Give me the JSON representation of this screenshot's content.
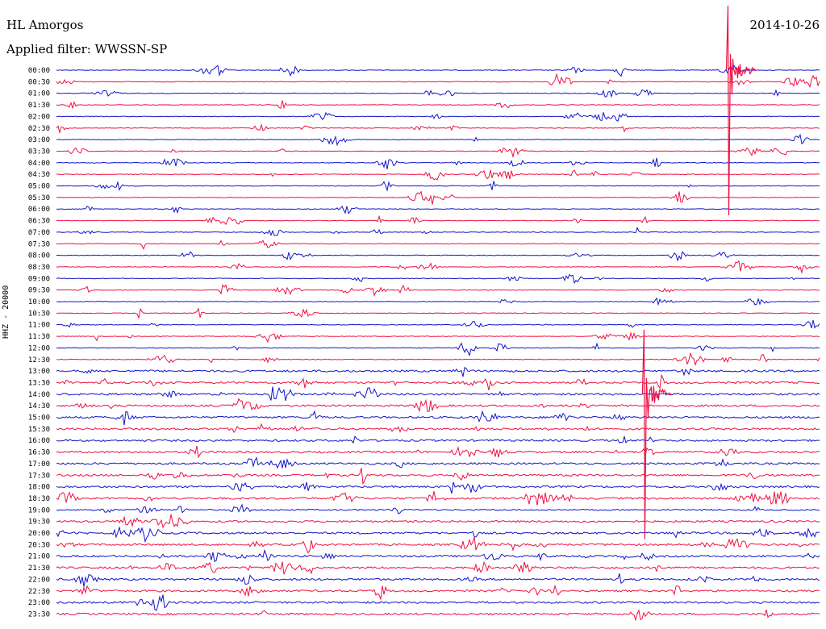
{
  "header": {
    "station": "HL Amorgos",
    "filter": "Applied filter: WWSSN-SP",
    "date": "2014-10-26"
  },
  "axis": {
    "ylabel": "HHZ - 20000"
  },
  "colors": {
    "trace_a": "#1414cc",
    "trace_b": "#ee1144",
    "background": "#ffffff"
  },
  "chart_data": {
    "type": "line",
    "title": "",
    "ylabel": "HHZ - 20000",
    "xlabel": "",
    "grid": false,
    "row_labels": [
      "00:00",
      "00:30",
      "01:00",
      "01:30",
      "02:00",
      "02:30",
      "03:00",
      "03:30",
      "04:00",
      "04:30",
      "05:00",
      "05:30",
      "06:00",
      "06:30",
      "07:00",
      "07:30",
      "08:00",
      "08:30",
      "09:00",
      "09:30",
      "10:00",
      "10:30",
      "11:00",
      "11:30",
      "12:00",
      "12:30",
      "13:00",
      "13:30",
      "14:00",
      "14:30",
      "15:00",
      "15:30",
      "16:00",
      "16:30",
      "17:00",
      "17:30",
      "18:00",
      "18:30",
      "19:00",
      "19:30",
      "20:00",
      "20:30",
      "21:00",
      "21:30",
      "22:00",
      "22:30",
      "23:00",
      "23:30"
    ],
    "row_colors": [
      "blue",
      "red"
    ],
    "row_noise": [
      1,
      1,
      1,
      1,
      1,
      1,
      1,
      1,
      1,
      1,
      1,
      1,
      1,
      1,
      1,
      1,
      1,
      1,
      1,
      1,
      1,
      1,
      1,
      1,
      1,
      1,
      3,
      3,
      3,
      3,
      3,
      3,
      3,
      3,
      3,
      3,
      3,
      3,
      2,
      3,
      3,
      3,
      3,
      3,
      3,
      3,
      3,
      3
    ],
    "major_events": [
      {
        "row": 0,
        "x_fraction": 0.88,
        "amplitude": "large"
      },
      {
        "row": 28,
        "x_fraction": 0.77,
        "amplitude": "large"
      }
    ]
  }
}
